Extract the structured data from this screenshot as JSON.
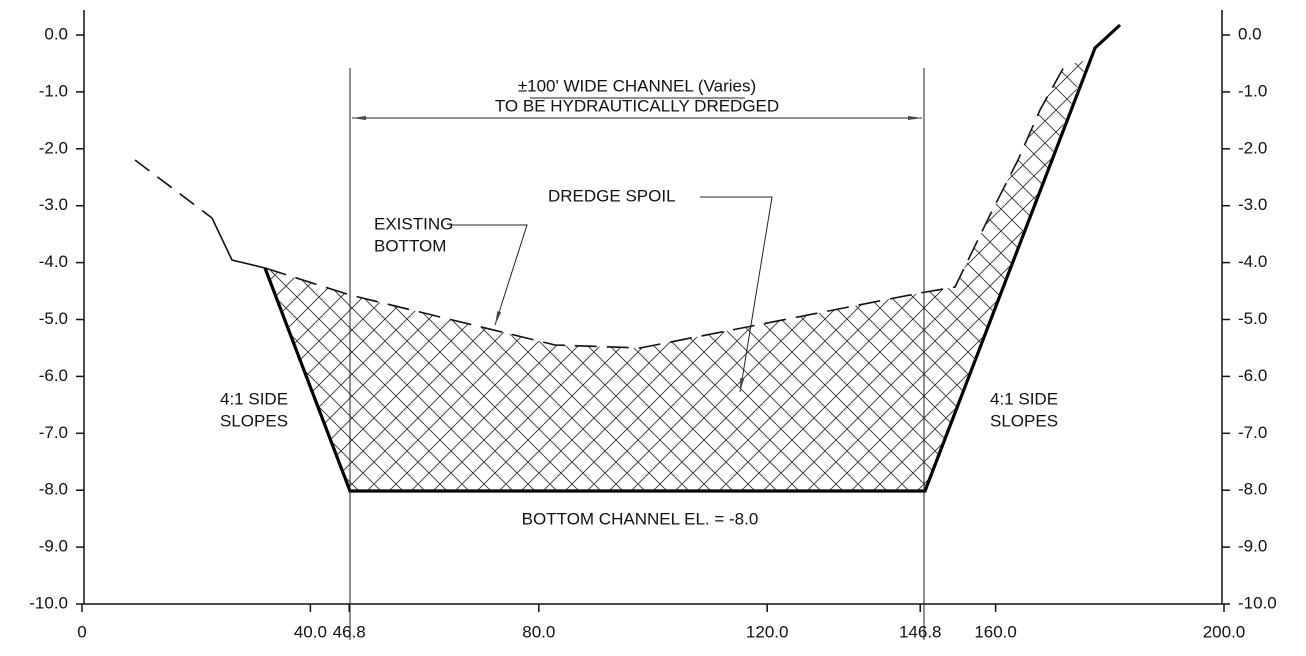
{
  "axes": {
    "yticks": [
      {
        "value": 0,
        "label": "0.0"
      },
      {
        "value": -1,
        "label": "-1.0"
      },
      {
        "value": -2,
        "label": "-2.0"
      },
      {
        "value": -3,
        "label": "-3.0"
      },
      {
        "value": -4,
        "label": "-4.0"
      },
      {
        "value": -5,
        "label": "-5.0"
      },
      {
        "value": -6,
        "label": "-6.0"
      },
      {
        "value": -7,
        "label": "-7.0"
      },
      {
        "value": -8,
        "label": "-8.0"
      },
      {
        "value": -9,
        "label": "-9.0"
      },
      {
        "value": -10,
        "label": "-10.0"
      }
    ],
    "xticks": [
      0,
      {
        "value": 40,
        "label": "40.0"
      },
      {
        "value": 46.8,
        "label": "46.8"
      },
      {
        "value": 80,
        "label": "80.0"
      },
      {
        "value": 120,
        "label": "120.0"
      },
      {
        "value": 146.8,
        "label": "146.8"
      },
      {
        "value": 160,
        "label": "160.0"
      },
      {
        "value": 200,
        "label": "200.0"
      }
    ]
  },
  "annotations": {
    "channel_line1": "±100' WIDE CHANNEL (Varies)",
    "channel_line2": "TO BE HYDRAUTICALLY DREDGED",
    "dredge_spoil": "DREDGE SPOIL",
    "existing_line1": "EXISTING",
    "existing_line2": "BOTTOM",
    "left_slope_line1": "4:1 SIDE",
    "left_slope_line2": "SLOPES",
    "right_slope_line1": "4:1 SIDE",
    "right_slope_line2": "SLOPES",
    "bottom_channel": "BOTTOM CHANNEL EL. = -8.0"
  }
}
